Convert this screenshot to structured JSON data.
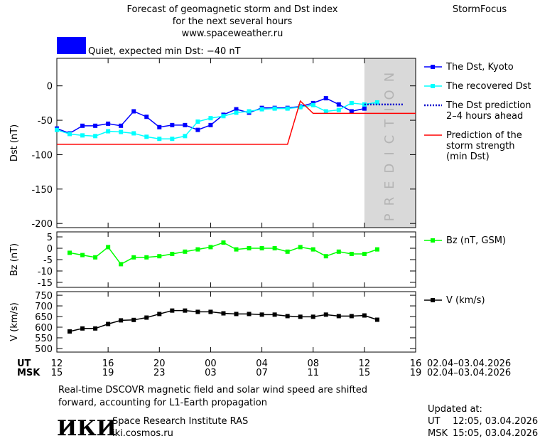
{
  "title": [
    "Forecast of geomagnetic storm and Dst index",
    "for the next several hours",
    "www.spaceweather.ru"
  ],
  "brand": "StormFocus",
  "status": {
    "text": "Quiet, expected min Dst: −40 nT",
    "color": "#0000ff"
  },
  "chart_data": [
    {
      "type": "line",
      "ylabel": "Dst (nT)",
      "xlim": [
        0,
        28
      ],
      "ylim": [
        -206,
        40
      ],
      "yticks": [
        0,
        -50,
        -100,
        -150,
        -200
      ],
      "prediction_region": {
        "x": [
          24,
          28
        ],
        "label": "PREDICTION",
        "color": "#d9d9d9"
      },
      "series": [
        {
          "name": [
            "The Dst, Kyoto"
          ],
          "color": "#0000ff",
          "marker": "square",
          "x": [
            0,
            1,
            2,
            3,
            4,
            5,
            6,
            7,
            8,
            9,
            10,
            11,
            12,
            13,
            14,
            15,
            16,
            17,
            18,
            19,
            20,
            21,
            22,
            23,
            24
          ],
          "values": [
            -62,
            -69,
            -58,
            -58,
            -55,
            -58,
            -37,
            -45,
            -60,
            -57,
            -57,
            -64,
            -57,
            -42,
            -34,
            -39,
            -32,
            -32,
            -32,
            -30,
            -25,
            -18,
            -27,
            -37,
            -33
          ]
        },
        {
          "name": [
            "The recovered Dst"
          ],
          "color": "#00ffff",
          "marker": "square",
          "x": [
            0,
            1,
            2,
            3,
            4,
            5,
            6,
            7,
            8,
            9,
            10,
            11,
            12,
            13,
            14,
            15,
            16,
            17,
            18,
            19,
            20,
            21,
            22,
            23,
            24,
            25
          ],
          "values": [
            -64,
            -70,
            -72,
            -73,
            -66,
            -67,
            -69,
            -74,
            -77,
            -77,
            -73,
            -52,
            -47,
            -44,
            -39,
            -37,
            -34,
            -33,
            -33,
            -31,
            -28,
            -37,
            -35,
            -25,
            -27,
            -24
          ]
        },
        {
          "name": [
            "The Dst prediction",
            "2–4 hours ahead"
          ],
          "color": "#0000cc",
          "dash": "dotted",
          "x": [
            24,
            27
          ],
          "values": [
            -27,
            -27
          ]
        },
        {
          "name": [
            "Prediction of the",
            "storm strength",
            "(min Dst)"
          ],
          "color": "#ff0000",
          "x": [
            0,
            18,
            19,
            20,
            28
          ],
          "values": [
            -85,
            -85,
            -22,
            -40,
            -40
          ]
        }
      ]
    },
    {
      "type": "line",
      "ylabel": "Bz (nT)",
      "xlim": [
        0,
        28
      ],
      "ylim": [
        -17.2,
        7.2
      ],
      "yticks": [
        5,
        0,
        -5,
        -10,
        -15
      ],
      "series": [
        {
          "name": [
            "Bz (nT, GSM)"
          ],
          "color": "#00ff00",
          "marker": "square",
          "x": [
            1,
            2,
            3,
            4,
            5,
            6,
            7,
            8,
            9,
            10,
            11,
            12,
            13,
            14,
            15,
            16,
            17,
            18,
            19,
            20,
            21,
            22,
            23,
            24,
            25
          ],
          "values": [
            -2,
            -3,
            -4,
            0.5,
            -7,
            -4,
            -4,
            -3.5,
            -2.5,
            -1.5,
            -0.5,
            0.5,
            2.5,
            -0.5,
            0,
            0,
            0,
            -1.5,
            0.5,
            -0.5,
            -3.5,
            -1.5,
            -2.5,
            -2.5,
            -0.5
          ]
        }
      ]
    },
    {
      "type": "line",
      "ylabel": "V (km/s)",
      "xlim": [
        0,
        28
      ],
      "ylim": [
        483,
        767
      ],
      "yticks": [
        750,
        700,
        650,
        600,
        550,
        500
      ],
      "xlabel_ut": "UT",
      "xlabel_msk": "MSK",
      "date_range": "02.04–03.04.2026",
      "xticks": [
        {
          "value": 0,
          "label": "12"
        },
        {
          "value": 4,
          "label": "16"
        },
        {
          "value": 8,
          "label": "20"
        },
        {
          "value": 12,
          "label": "00"
        },
        {
          "value": 16,
          "label": "04"
        },
        {
          "value": 20,
          "label": "08"
        },
        {
          "value": 24,
          "label": "12"
        },
        {
          "value": 28,
          "label": "16"
        }
      ],
      "xticks_msk": [
        {
          "value": 0,
          "label": "15"
        },
        {
          "value": 4,
          "label": "19"
        },
        {
          "value": 8,
          "label": "23"
        },
        {
          "value": 12,
          "label": "03"
        },
        {
          "value": 16,
          "label": "07"
        },
        {
          "value": 20,
          "label": "11"
        },
        {
          "value": 24,
          "label": "15"
        },
        {
          "value": 28,
          "label": "19"
        }
      ],
      "series": [
        {
          "name": [
            "V (km/s)"
          ],
          "color": "#000000",
          "marker": "square",
          "x": [
            1,
            2,
            3,
            4,
            5,
            6,
            7,
            8,
            9,
            10,
            11,
            12,
            13,
            14,
            15,
            16,
            17,
            18,
            19,
            20,
            21,
            22,
            23,
            24,
            25
          ],
          "values": [
            580,
            594,
            594,
            615,
            632,
            634,
            645,
            662,
            678,
            678,
            672,
            672,
            665,
            662,
            662,
            659,
            659,
            652,
            649,
            649,
            659,
            652,
            652,
            655,
            635
          ]
        }
      ]
    }
  ],
  "footer": {
    "note": [
      "Real-time DSCOVR magnetic field and solar wind speed are shifted",
      "forward, accounting for L1-Earth propagation"
    ],
    "logo": "ИКИ",
    "institute": "Space Research Institute RAS",
    "url": "iki.cosmos.ru",
    "updated": {
      "heading": "Updated at:",
      "ut_label": "UT",
      "ut": "12:05, 03.04.2026",
      "msk_label": "MSK",
      "msk": "15:05, 03.04.2026"
    }
  }
}
